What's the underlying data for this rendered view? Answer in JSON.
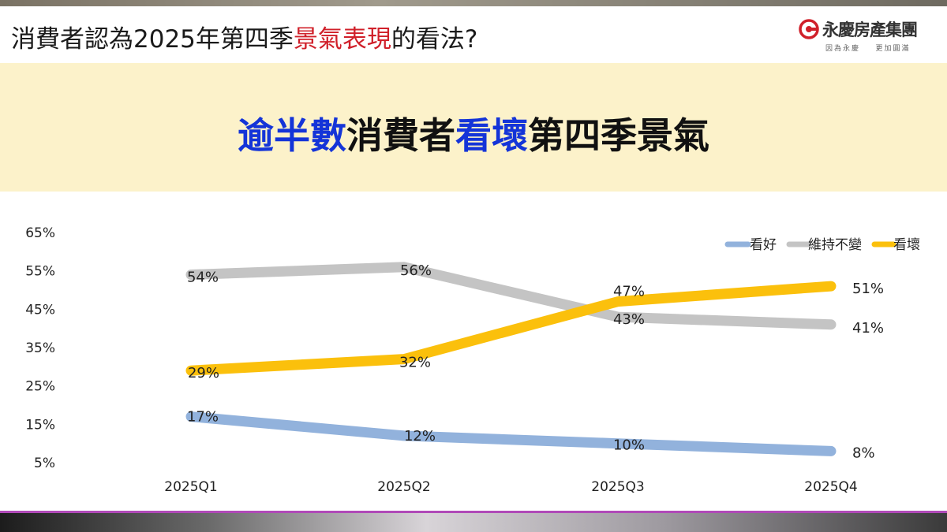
{
  "header": {
    "title_pre": "消費者認為2025年第四季",
    "title_highlight": "景氣表現",
    "title_post": "的看法?"
  },
  "logo": {
    "name": "永慶房產集團",
    "slogan": "因為永慶    更加圓滿"
  },
  "banner": {
    "part1": "逾半數",
    "part2": "消費者",
    "part3": "看壞",
    "part4": "第四季景氣"
  },
  "colors": {
    "highlight_red": "#d0202a",
    "banner_blue": "#1434d8",
    "banner_bg": "#fcf2ca",
    "series_good": "#92b2dc",
    "series_same": "#c4c4c4",
    "series_bad": "#fbc00c"
  },
  "chart_data": {
    "type": "line",
    "categories": [
      "2025Q1",
      "2025Q2",
      "2025Q3",
      "2025Q4"
    ],
    "y_ticks": [
      "65%",
      "55%",
      "45%",
      "35%",
      "25%",
      "15%",
      "5%"
    ],
    "ylim": [
      5,
      65
    ],
    "legend_position": "top-right",
    "grid": false,
    "series": [
      {
        "name": "看好",
        "values": [
          17,
          12,
          10,
          8
        ],
        "labels": [
          "17%",
          "12%",
          "10%",
          "8%"
        ],
        "color": "#92b2dc"
      },
      {
        "name": "維持不變",
        "values": [
          54,
          56,
          43,
          41
        ],
        "labels": [
          "54%",
          "56%",
          "43%",
          "41%"
        ],
        "color": "#c4c4c4"
      },
      {
        "name": "看壞",
        "values": [
          29,
          32,
          47,
          51
        ],
        "labels": [
          "29%",
          "32%",
          "47%",
          "51%"
        ],
        "color": "#fbc00c"
      }
    ]
  }
}
